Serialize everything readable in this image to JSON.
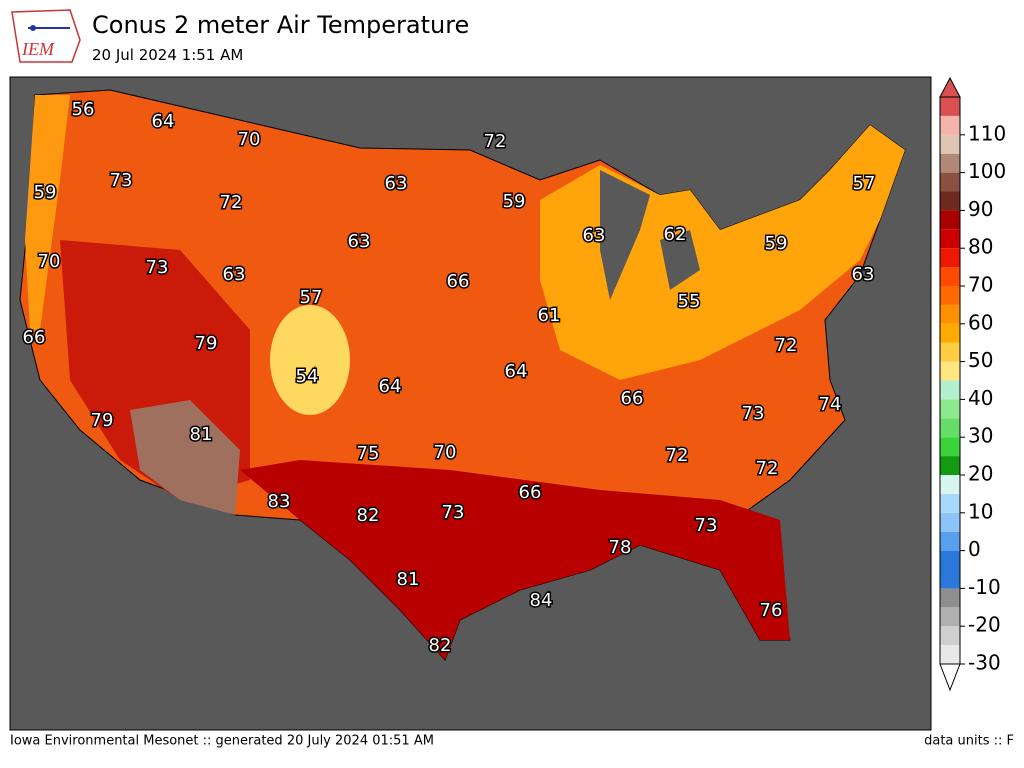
{
  "header": {
    "logo": "IEM",
    "title": "Conus 2 meter Air Temperature",
    "subtitle": "20 Jul 2024 1:51 AM"
  },
  "map": {
    "labels": [
      "56",
      "64",
      "70",
      "72",
      "73",
      "63",
      "59",
      "72",
      "59",
      "57",
      "63",
      "62",
      "59",
      "63",
      "70",
      "73",
      "63",
      "66",
      "63",
      "57",
      "55",
      "61",
      "66",
      "79",
      "72",
      "54",
      "64",
      "64",
      "66",
      "74",
      "73",
      "79",
      "81",
      "75",
      "70",
      "72",
      "72",
      "66",
      "83",
      "82",
      "73",
      "73",
      "78",
      "81",
      "84",
      "76",
      "82"
    ]
  },
  "colorbar": {
    "lim": [
      -30,
      120
    ],
    "ticks": [
      -30,
      -20,
      -10,
      0,
      10,
      20,
      30,
      40,
      50,
      60,
      70,
      80,
      90,
      100,
      110
    ],
    "colors": [
      "#e8e8e8",
      "#cfcfcf",
      "#b0b0b0",
      "#8e8e8e",
      "#2a78d8",
      "#2a78d8",
      "#5a9eee",
      "#8cc4f8",
      "#a8d8fa",
      "#d8f6f0",
      "#129a12",
      "#3ad43a",
      "#66dd66",
      "#8ee88e",
      "#b4f0d0",
      "#ffe680",
      "#ffcc44",
      "#ffaa00",
      "#ff9000",
      "#ff6a00",
      "#ff4a00",
      "#ee1800",
      "#cc0000",
      "#a80000",
      "#6e2a20",
      "#8a5040",
      "#b08878",
      "#e0c4b4",
      "#f4b4ac",
      "#d85050"
    ]
  },
  "footer": {
    "left": "Iowa Environmental Mesonet :: generated 20 July 2024 01:51 AM",
    "right": "data units :: F"
  }
}
